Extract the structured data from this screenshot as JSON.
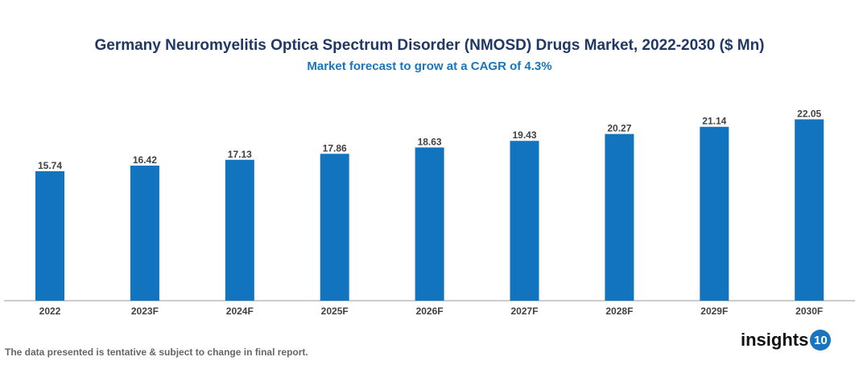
{
  "chart_data": {
    "type": "bar",
    "title": "Germany Neuromyelitis Optica Spectrum Disorder (NMOSD) Drugs Market, 2022-2030 ($ Mn)",
    "subtitle": "Market forecast to grow at a CAGR of 4.3%",
    "categories": [
      "2022",
      "2023F",
      "2024F",
      "2025F",
      "2026F",
      "2027F",
      "2028F",
      "2029F",
      "2030F"
    ],
    "values": [
      15.74,
      16.42,
      17.13,
      17.86,
      18.63,
      19.43,
      20.27,
      21.14,
      22.05
    ],
    "ylim": [
      0,
      25
    ],
    "grid": false,
    "bar_color": "#1273be",
    "xlabel": "",
    "ylabel": ""
  },
  "footer": {
    "note": "The data presented is tentative & subject to change in final report.",
    "logo_text": "insights",
    "logo_number": "10"
  }
}
